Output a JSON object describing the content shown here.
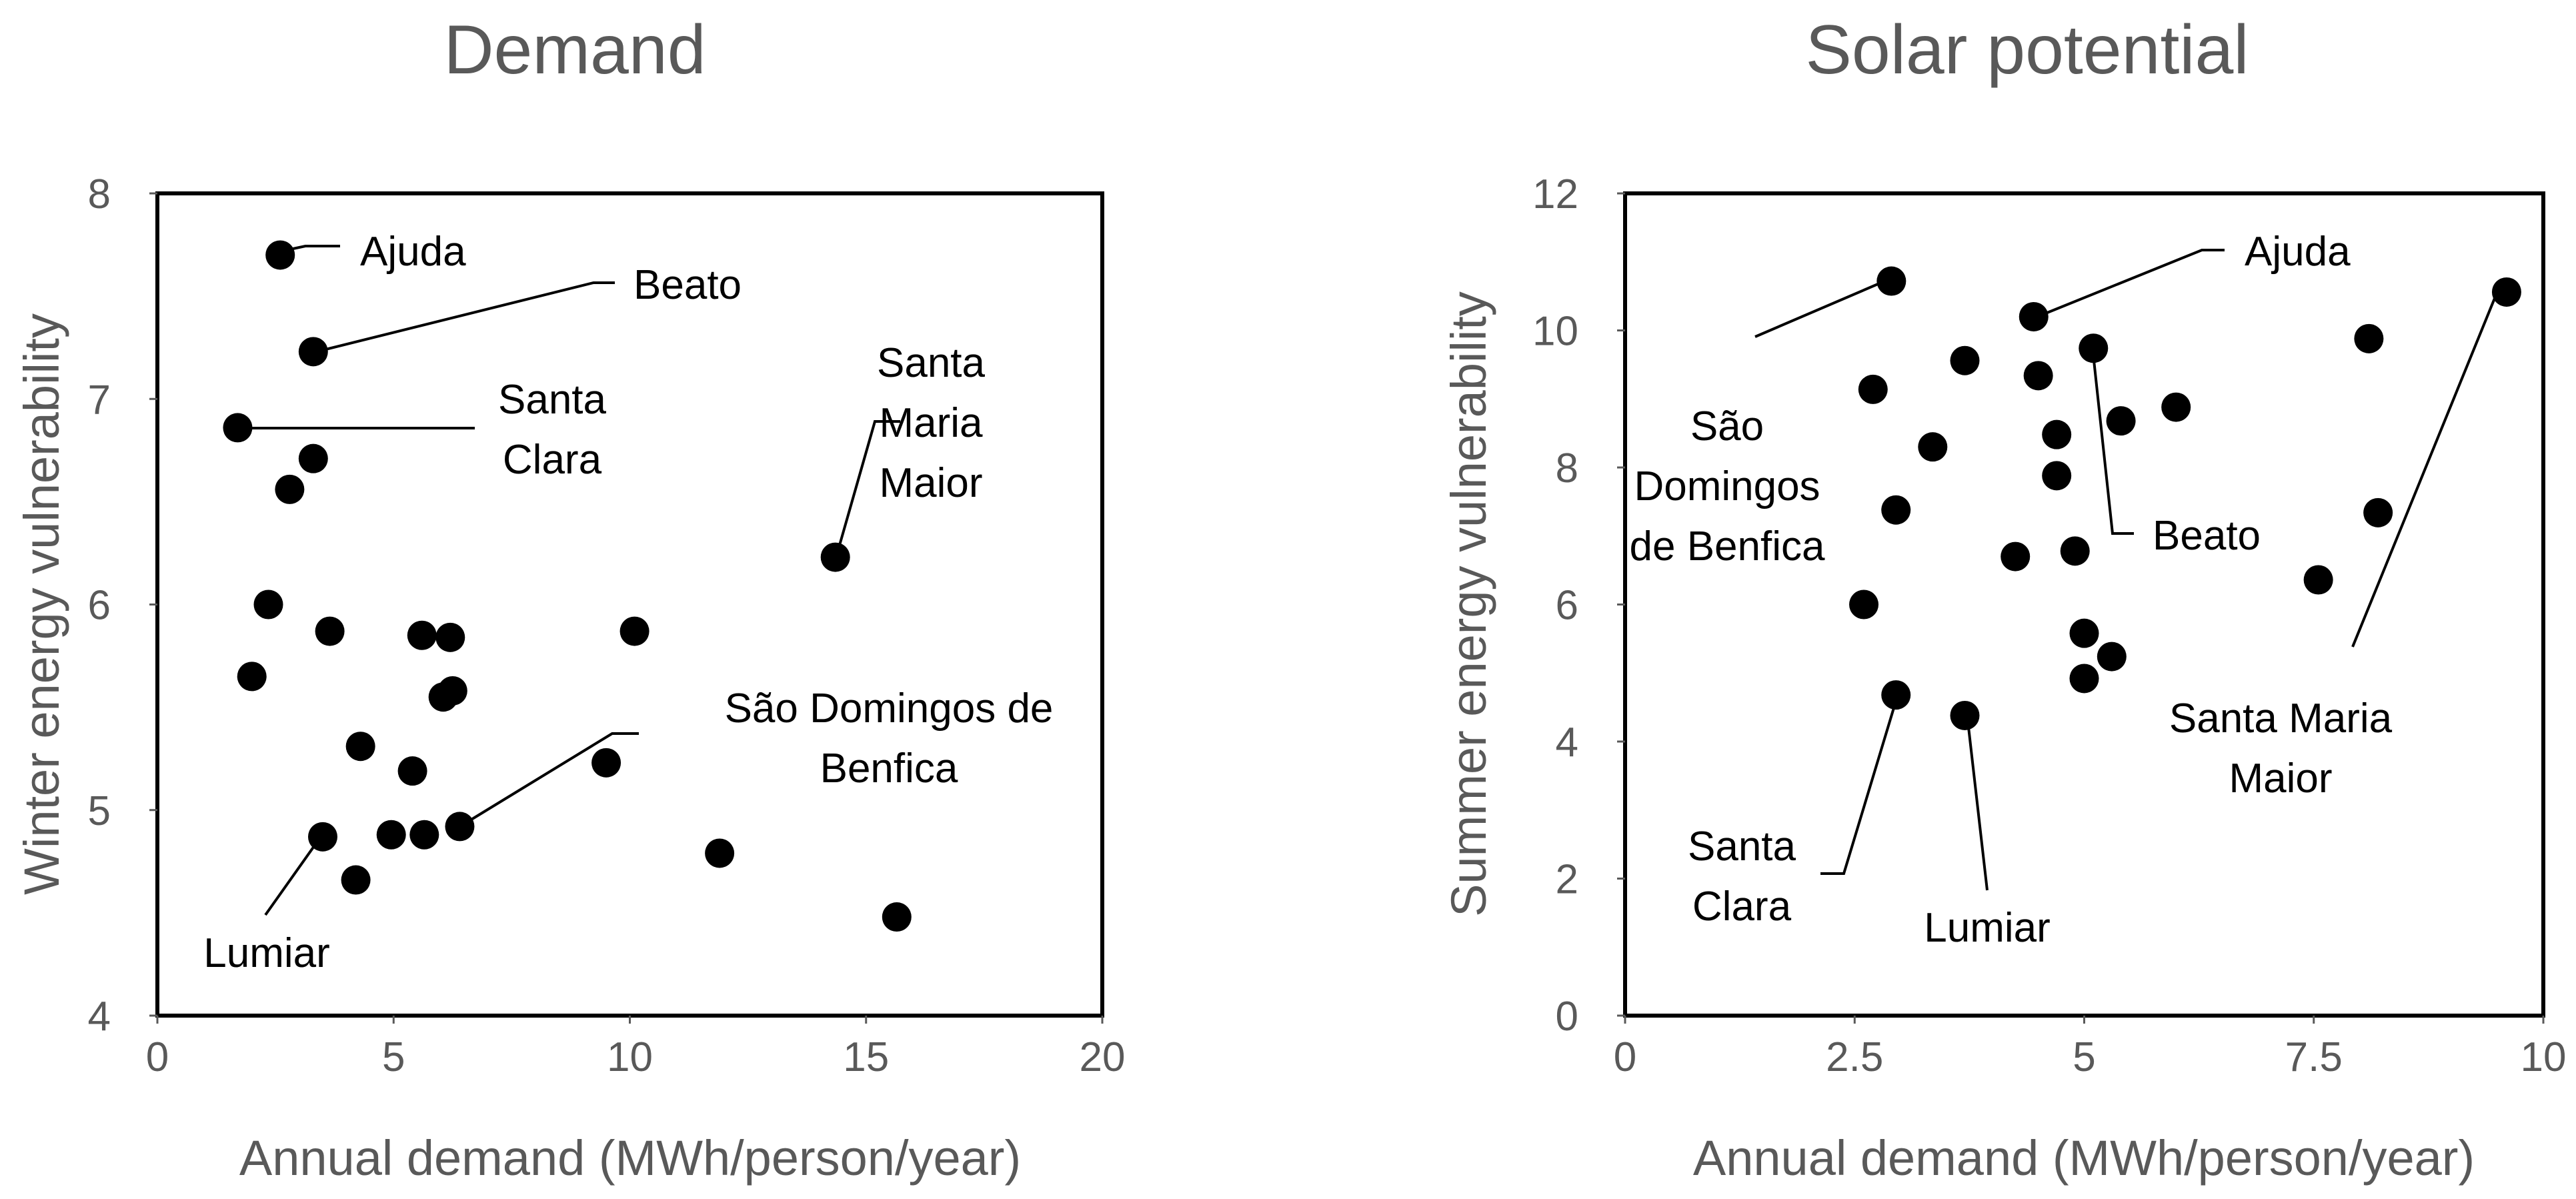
{
  "chart_data": [
    {
      "type": "scatter",
      "title": "Demand",
      "xlabel": "Annual  demand (MWh/person/year)",
      "ylabel": "Winter energy vulnerability",
      "xlim": [
        0,
        20
      ],
      "ylim": [
        4,
        8
      ],
      "xticks": [
        0,
        5,
        10,
        15,
        20
      ],
      "yticks": [
        4,
        5,
        6,
        7,
        8
      ],
      "xtick_labels": [
        "0",
        "5",
        "10",
        "15",
        "20"
      ],
      "ytick_labels": [
        "4",
        "5",
        "6",
        "7",
        "8"
      ],
      "points": [
        {
          "x": 2.6,
          "y": 7.7
        },
        {
          "x": 3.3,
          "y": 7.23
        },
        {
          "x": 1.7,
          "y": 6.86
        },
        {
          "x": 3.3,
          "y": 6.71
        },
        {
          "x": 2.8,
          "y": 6.56
        },
        {
          "x": 14.35,
          "y": 6.23
        },
        {
          "x": 2.35,
          "y": 6.0
        },
        {
          "x": 3.65,
          "y": 5.87
        },
        {
          "x": 5.6,
          "y": 5.85
        },
        {
          "x": 6.2,
          "y": 5.84
        },
        {
          "x": 10.1,
          "y": 5.87
        },
        {
          "x": 2.0,
          "y": 5.65
        },
        {
          "x": 6.25,
          "y": 5.58
        },
        {
          "x": 6.05,
          "y": 5.55
        },
        {
          "x": 4.3,
          "y": 5.31
        },
        {
          "x": 9.5,
          "y": 5.23
        },
        {
          "x": 5.4,
          "y": 5.19
        },
        {
          "x": 3.5,
          "y": 4.87
        },
        {
          "x": 4.95,
          "y": 4.88
        },
        {
          "x": 5.65,
          "y": 4.88
        },
        {
          "x": 6.4,
          "y": 4.92
        },
        {
          "x": 11.9,
          "y": 4.79
        },
        {
          "x": 4.2,
          "y": 4.66
        },
        {
          "x": 15.65,
          "y": 4.48
        }
      ],
      "annotations": [
        {
          "label": "Ajuda",
          "lines": [
            "Ajuda"
          ],
          "x": 2.6,
          "y": 7.7
        },
        {
          "label": "Beato",
          "lines": [
            "Beato"
          ],
          "x": 3.3,
          "y": 7.23
        },
        {
          "label": "Santa Clara",
          "lines": [
            "Santa",
            "Clara"
          ],
          "x": 1.7,
          "y": 6.86
        },
        {
          "label": "Santa Maria Maior",
          "lines": [
            "Santa",
            "Maria",
            "Maior"
          ],
          "x": 14.35,
          "y": 6.23
        },
        {
          "label": "São Domingos de Benfica",
          "lines": [
            "São Domingos de",
            "Benfica"
          ],
          "x": 6.4,
          "y": 4.92
        },
        {
          "label": "Lumiar",
          "lines": [
            "Lumiar"
          ],
          "x": 3.5,
          "y": 4.87
        }
      ]
    },
    {
      "type": "scatter",
      "title": "Solar potential",
      "xlabel": "Annual  demand (MWh/person/year)",
      "ylabel": "Summer energy vulnerability",
      "xlim": [
        0,
        10
      ],
      "ylim": [
        0,
        12
      ],
      "xticks": [
        0,
        2.5,
        5,
        7.5,
        10
      ],
      "yticks": [
        0,
        2,
        4,
        6,
        8,
        10,
        12
      ],
      "xtick_labels": [
        "0",
        "2.5",
        "5",
        "7.5",
        "10"
      ],
      "ytick_labels": [
        "0",
        "2",
        "4",
        "6",
        "8",
        "10",
        "12"
      ],
      "points": [
        {
          "x": 2.9,
          "y": 10.72
        },
        {
          "x": 4.45,
          "y": 10.2
        },
        {
          "x": 9.6,
          "y": 10.56
        },
        {
          "x": 8.1,
          "y": 9.88
        },
        {
          "x": 5.1,
          "y": 9.74
        },
        {
          "x": 3.7,
          "y": 9.56
        },
        {
          "x": 4.5,
          "y": 9.34
        },
        {
          "x": 2.7,
          "y": 9.14
        },
        {
          "x": 6.0,
          "y": 8.88
        },
        {
          "x": 5.4,
          "y": 8.68
        },
        {
          "x": 4.7,
          "y": 8.48
        },
        {
          "x": 3.35,
          "y": 8.3
        },
        {
          "x": 4.7,
          "y": 7.88
        },
        {
          "x": 2.95,
          "y": 7.38
        },
        {
          "x": 8.2,
          "y": 7.34
        },
        {
          "x": 4.9,
          "y": 6.78
        },
        {
          "x": 4.25,
          "y": 6.7
        },
        {
          "x": 7.55,
          "y": 6.36
        },
        {
          "x": 2.6,
          "y": 6.0
        },
        {
          "x": 5.0,
          "y": 5.58
        },
        {
          "x": 5.3,
          "y": 5.24
        },
        {
          "x": 5.0,
          "y": 4.92
        },
        {
          "x": 2.95,
          "y": 4.68
        },
        {
          "x": 3.7,
          "y": 4.38
        }
      ],
      "annotations": [
        {
          "label": "Ajuda",
          "lines": [
            "Ajuda"
          ],
          "x": 4.45,
          "y": 10.2
        },
        {
          "label": "São Domingos de Benfica",
          "lines": [
            "São",
            "Domingos",
            "de Benfica"
          ],
          "x": 2.9,
          "y": 10.72
        },
        {
          "label": "Beato",
          "lines": [
            "Beato"
          ],
          "x": 5.1,
          "y": 9.74
        },
        {
          "label": "Santa Maria Maior",
          "lines": [
            "Santa Maria",
            "Maior"
          ],
          "x": 9.6,
          "y": 10.56
        },
        {
          "label": "Santa Clara",
          "lines": [
            "Santa",
            "Clara"
          ],
          "x": 2.95,
          "y": 4.68
        },
        {
          "label": "Lumiar",
          "lines": [
            "Lumiar"
          ],
          "x": 3.7,
          "y": 4.38
        }
      ]
    }
  ]
}
